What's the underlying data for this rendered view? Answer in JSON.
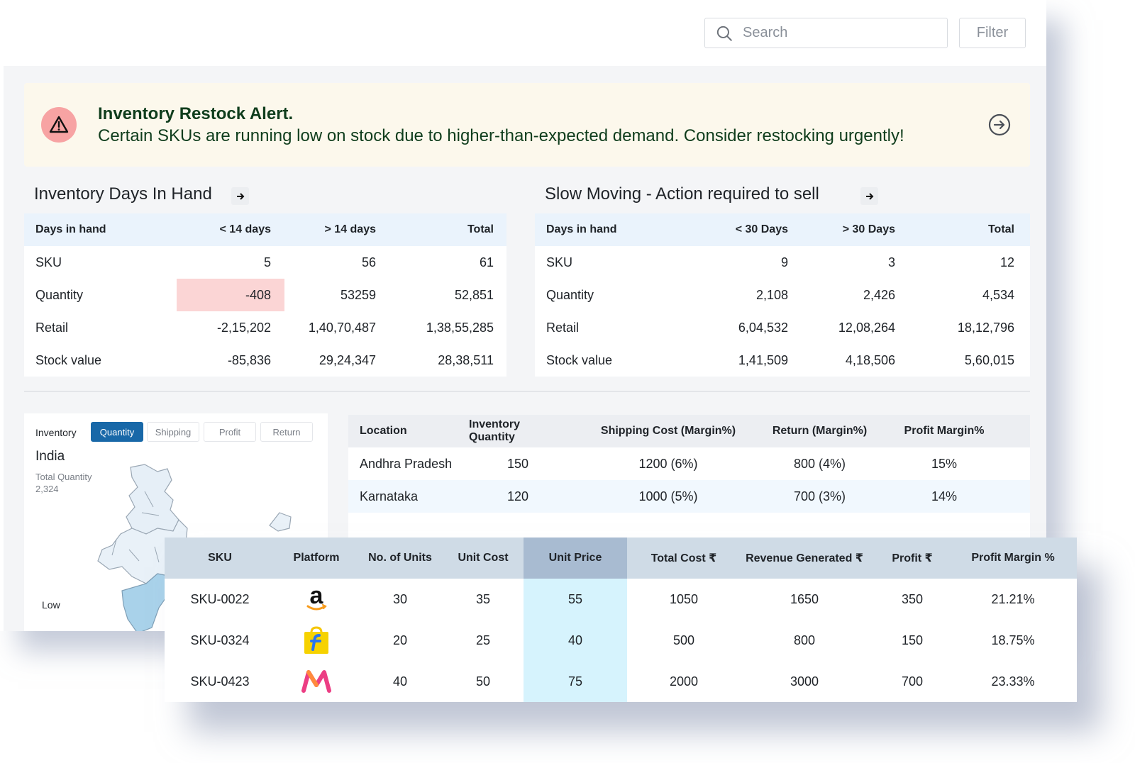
{
  "search": {
    "placeholder": "Search"
  },
  "filter_label": "Filter",
  "alert": {
    "title": "Inventory Restock Alert.",
    "message": "Certain SKUs are running low on stock due to higher-than-expected demand. Consider restocking urgently!"
  },
  "days_in_hand": {
    "title": "Inventory Days In Hand",
    "headers": [
      "Days in hand",
      "< 14 days",
      "> 14 days",
      "Total"
    ],
    "rows": [
      [
        "SKU",
        "5",
        "56",
        "61"
      ],
      [
        "Quantity",
        "-408",
        "53259",
        "52,851"
      ],
      [
        "Retail",
        "-2,15,202",
        "1,40,70,487",
        "1,38,55,285"
      ],
      [
        "Stock value",
        "-85,836",
        "29,24,347",
        "28,38,511"
      ]
    ],
    "alert_color": "#fbd5d5"
  },
  "slow_moving": {
    "title": "Slow Moving - Action required to sell",
    "headers": [
      "Days in hand",
      "< 30 Days",
      "> 30 Days",
      "Total"
    ],
    "rows": [
      [
        "SKU",
        "9",
        "3",
        "12"
      ],
      [
        "Quantity",
        "2,108",
        "2,426",
        "4,534"
      ],
      [
        "Retail",
        "6,04,532",
        "12,08,264",
        "18,12,796"
      ],
      [
        "Stock value",
        "1,41,509",
        "4,18,506",
        "5,60,015"
      ]
    ]
  },
  "map": {
    "inventory_label": "Inventory",
    "tabs": [
      "Quantity",
      "Shipping",
      "Profit",
      "Return"
    ],
    "active_tab": "Quantity",
    "country": "India",
    "total_label": "Total Quantity",
    "total_value": "2,324",
    "legend_low": "Low",
    "accent_color": "#1868a8"
  },
  "locations": {
    "headers": [
      "Location",
      "Inventory Quantity",
      "Shipping Cost (Margin%)",
      "Return (Margin%)",
      "Profit Margin%"
    ],
    "rows": [
      [
        "Andhra Pradesh",
        "150",
        "1200 (6%)",
        "800 (4%)",
        "15%"
      ],
      [
        "Karnataka",
        "120",
        "1000 (5%)",
        "700 (3%)",
        "14%"
      ]
    ]
  },
  "sku_table": {
    "headers": [
      "SKU",
      "Platform",
      "No. of Units",
      "Unit Cost",
      "Unit Price",
      "Total Cost ₹",
      "Revenue Generated ₹",
      "Profit ₹",
      "Profit Margin %"
    ],
    "highlight_column": "Unit Price",
    "rows": [
      {
        "sku": "SKU-0022",
        "platform_icon": "amazon-logo-icon",
        "units": "30",
        "unit_cost": "35",
        "unit_price": "55",
        "total_cost": "1050",
        "revenue": "1650",
        "profit": "350",
        "margin": "21.21%"
      },
      {
        "sku": "SKU-0324",
        "platform_icon": "flipkart-logo-icon",
        "units": "20",
        "unit_cost": "25",
        "unit_price": "40",
        "total_cost": "500",
        "revenue": "800",
        "profit": "150",
        "margin": "18.75%"
      },
      {
        "sku": "SKU-0423",
        "platform_icon": "myntra-logo-icon",
        "units": "40",
        "unit_cost": "50",
        "unit_price": "75",
        "total_cost": "2000",
        "revenue": "3000",
        "profit": "700",
        "margin": "23.33%"
      }
    ]
  }
}
